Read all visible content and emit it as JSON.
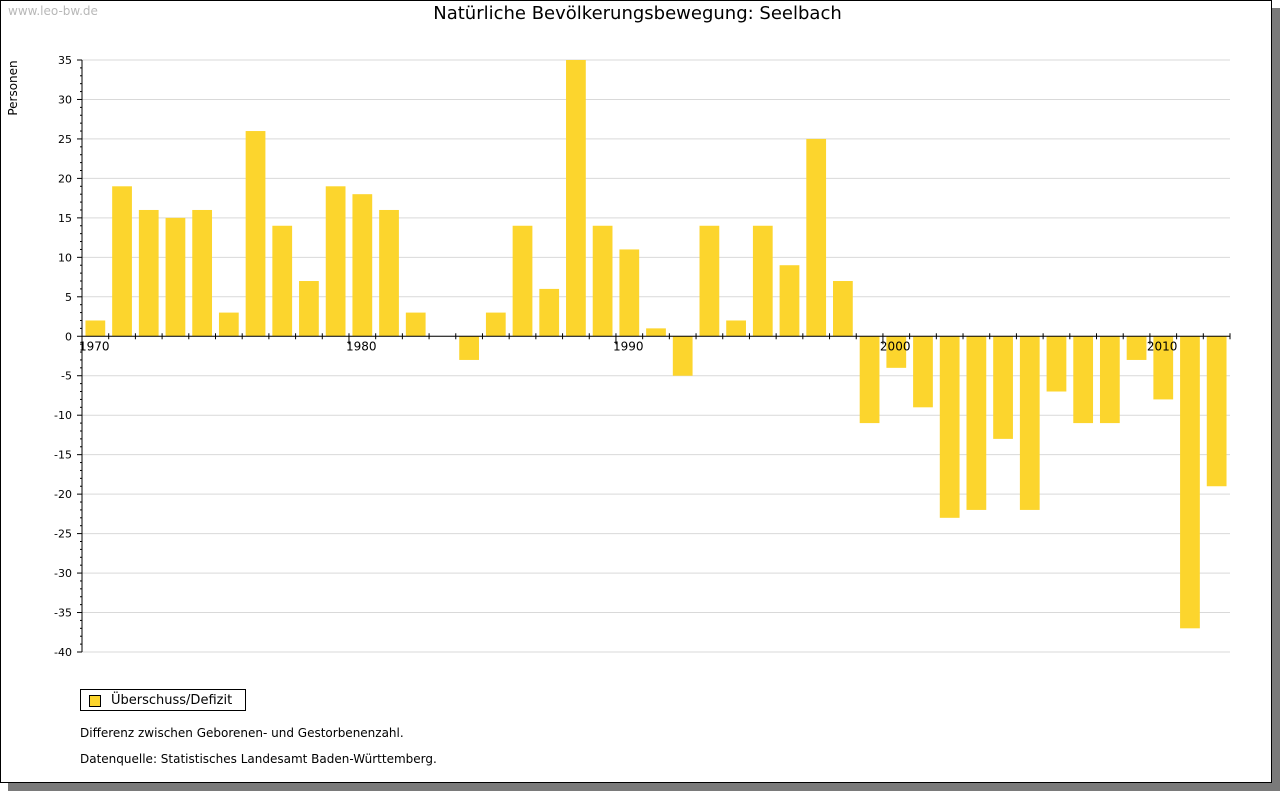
{
  "site": {
    "watermark": "www.leo-bw.de"
  },
  "colors": {
    "bar": "#fcd52d",
    "grid": "#d9d9d9",
    "axis": "#000000"
  },
  "chart_data": {
    "type": "bar",
    "title": "Natürliche Bevölkerungsbewegung: Seelbach",
    "xlabel": "",
    "ylabel": "Personen",
    "ylim": [
      -40,
      35
    ],
    "yticks": [
      35,
      30,
      25,
      20,
      15,
      10,
      5,
      0,
      -5,
      -10,
      -15,
      -20,
      -25,
      -30,
      -35,
      -40
    ],
    "xtick_labels": [
      "1970",
      "1980",
      "1990",
      "2000",
      "2010"
    ],
    "categories": [
      1970,
      1971,
      1972,
      1973,
      1974,
      1975,
      1976,
      1977,
      1978,
      1979,
      1980,
      1981,
      1982,
      1983,
      1984,
      1985,
      1986,
      1987,
      1988,
      1989,
      1990,
      1991,
      1992,
      1993,
      1994,
      1995,
      1996,
      1997,
      1998,
      1999,
      2000,
      2001,
      2002,
      2003,
      2004,
      2005,
      2006,
      2007,
      2008,
      2009,
      2010,
      2011,
      2012
    ],
    "series": [
      {
        "name": "Überschuss/Defizit",
        "values": [
          2,
          19,
          16,
          15,
          16,
          3,
          26,
          14,
          7,
          19,
          18,
          16,
          3,
          0,
          -3,
          3,
          14,
          6,
          35,
          14,
          11,
          1,
          -5,
          14,
          2,
          14,
          9,
          25,
          7,
          -11,
          -4,
          -9,
          -23,
          -22,
          -13,
          -22,
          -7,
          -11,
          -11,
          -3,
          -8,
          -37,
          -19
        ]
      }
    ],
    "legend": "bottom-left"
  },
  "footer": {
    "note": "Differenz zwischen Geborenen- und Gestorbenenzahl.",
    "source": "Datenquelle: Statistisches Landesamt Baden-Württemberg."
  }
}
